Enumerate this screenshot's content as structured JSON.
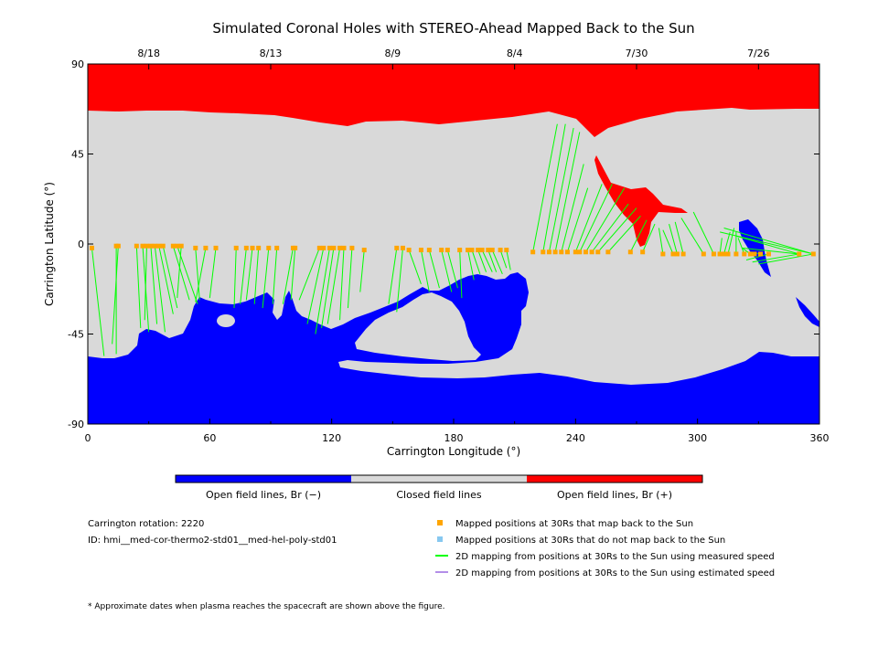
{
  "chart_data": {
    "type": "map",
    "title": "Simulated Coronal Holes with STEREO-Ahead Mapped Back to the Sun",
    "xlabel": "Carrington Longitude (°)",
    "ylabel": "Carrington Latitude (°)",
    "xlim": [
      0,
      360
    ],
    "ylim": [
      -90,
      90
    ],
    "x_ticks": [
      0,
      60,
      120,
      180,
      240,
      300,
      360
    ],
    "y_ticks": [
      -90,
      -45,
      0,
      45,
      90
    ],
    "top_date_ticks": [
      {
        "lon": 30,
        "label": "8/18"
      },
      {
        "lon": 90,
        "label": "8/13"
      },
      {
        "lon": 150,
        "label": "8/9"
      },
      {
        "lon": 210,
        "label": "8/4"
      },
      {
        "lon": 270,
        "label": "7/30"
      },
      {
        "lon": 330,
        "label": "7/26"
      }
    ],
    "colorbar": [
      {
        "label": "Open field lines, Br (−)",
        "color": "#0000ff"
      },
      {
        "label": "Closed field lines",
        "color": "#d9d9d9"
      },
      {
        "label": "Open field lines, Br (+)",
        "color": "#ff0000"
      }
    ],
    "colors": {
      "negative": "#0000ff",
      "closed": "#d9d9d9",
      "positive": "#ff0000",
      "point": "#ffa500",
      "measured_line": "#00ff00",
      "estimated_line": "#b38ee8",
      "unmapped_point": "#87c8f0"
    },
    "mapped_points": [
      [
        2,
        -2
      ],
      [
        14,
        -1
      ],
      [
        15,
        -1
      ],
      [
        24,
        -1
      ],
      [
        27,
        -1
      ],
      [
        29,
        -1
      ],
      [
        31,
        -1
      ],
      [
        33,
        -1
      ],
      [
        35,
        -1
      ],
      [
        37,
        -1
      ],
      [
        42,
        -1
      ],
      [
        44,
        -1
      ],
      [
        46,
        -1
      ],
      [
        53,
        -2
      ],
      [
        58,
        -2
      ],
      [
        63,
        -2
      ],
      [
        73,
        -2
      ],
      [
        78,
        -2
      ],
      [
        81,
        -2
      ],
      [
        84,
        -2
      ],
      [
        89,
        -2
      ],
      [
        93,
        -2
      ],
      [
        101,
        -2
      ],
      [
        102,
        -2
      ],
      [
        114,
        -2
      ],
      [
        116,
        -2
      ],
      [
        119,
        -2
      ],
      [
        121,
        -2
      ],
      [
        124,
        -2
      ],
      [
        126,
        -2
      ],
      [
        130,
        -2
      ],
      [
        136,
        -3
      ],
      [
        152,
        -2
      ],
      [
        155,
        -2
      ],
      [
        158,
        -3
      ],
      [
        164,
        -3
      ],
      [
        168,
        -3
      ],
      [
        174,
        -3
      ],
      [
        177,
        -3
      ],
      [
        183,
        -3
      ],
      [
        187,
        -3
      ],
      [
        189,
        -3
      ],
      [
        192,
        -3
      ],
      [
        194,
        -3
      ],
      [
        197,
        -3
      ],
      [
        199,
        -3
      ],
      [
        203,
        -3
      ],
      [
        206,
        -3
      ],
      [
        219,
        -4
      ],
      [
        224,
        -4
      ],
      [
        227,
        -4
      ],
      [
        230,
        -4
      ],
      [
        233,
        -4
      ],
      [
        236,
        -4
      ],
      [
        240,
        -4
      ],
      [
        242,
        -4
      ],
      [
        245,
        -4
      ],
      [
        248,
        -4
      ],
      [
        251,
        -4
      ],
      [
        256,
        -4
      ],
      [
        267,
        -4
      ],
      [
        273,
        -4
      ],
      [
        283,
        -5
      ],
      [
        288,
        -5
      ],
      [
        290,
        -5
      ],
      [
        293,
        -5
      ],
      [
        303,
        -5
      ],
      [
        308,
        -5
      ],
      [
        311,
        -5
      ],
      [
        313,
        -5
      ],
      [
        315,
        -5
      ],
      [
        319,
        -5
      ],
      [
        323,
        -5
      ],
      [
        326,
        -5
      ],
      [
        328,
        -5
      ],
      [
        331,
        -5
      ],
      [
        335,
        -5
      ],
      [
        350,
        -5
      ],
      [
        357,
        -5
      ]
    ],
    "legend": [
      {
        "symbol": "point",
        "color": "#ffa500",
        "label": "Mapped positions at 30Rs that map back to the Sun"
      },
      {
        "symbol": "point",
        "color": "#87c8f0",
        "label": "Mapped positions at 30Rs that do not map back to the Sun"
      },
      {
        "symbol": "line",
        "color": "#00ff00",
        "label": "2D mapping from positions at 30Rs to the Sun using measured speed"
      },
      {
        "symbol": "line",
        "color": "#b38ee8",
        "label": "2D mapping from positions at 30Rs to the Sun using estimated speed"
      }
    ]
  },
  "info": {
    "rotation": "Carrington rotation: 2220",
    "id": "ID: hmi__med-cor-thermo2-std01__med-hel-poly-std01"
  },
  "footnote": "* Approximate dates when plasma reaches the spacecraft are shown above the figure."
}
